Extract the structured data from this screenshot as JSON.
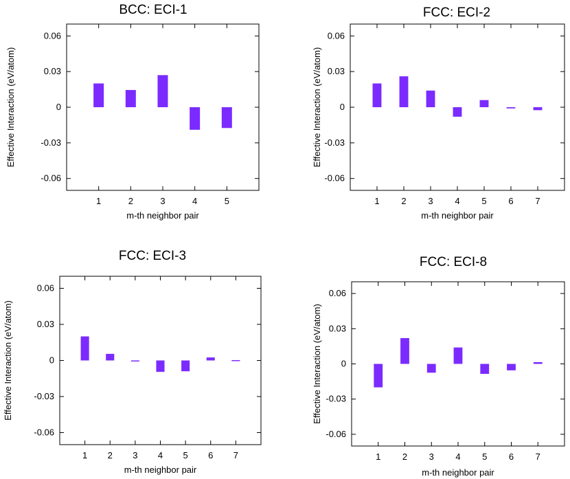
{
  "chart_data": [
    {
      "type": "bar",
      "title": "BCC: ECI-1",
      "xlabel": "m-th neighbor pair",
      "ylabel": "Effective Interaction (eV/atom)",
      "categories": [
        "1",
        "2",
        "3",
        "4",
        "5"
      ],
      "values": [
        0.02,
        0.0145,
        0.027,
        -0.019,
        -0.0175
      ],
      "yticks": [
        "0.06",
        "0.03",
        "0",
        "-0.03",
        "-0.06"
      ],
      "ylim": [
        -0.07,
        0.07
      ],
      "color": "#7b2bff"
    },
    {
      "type": "bar",
      "title": "FCC: ECI-2",
      "xlabel": "m-th neighbor pair",
      "ylabel": "Effective Interaction (eV/atom)",
      "categories": [
        "1",
        "2",
        "3",
        "4",
        "5",
        "6",
        "7"
      ],
      "values": [
        0.02,
        0.026,
        0.014,
        -0.008,
        0.006,
        -0.001,
        -0.0025
      ],
      "yticks": [
        "0.06",
        "0.03",
        "0",
        "-0.03",
        "-0.06"
      ],
      "ylim": [
        -0.07,
        0.07
      ],
      "color": "#7b2bff"
    },
    {
      "type": "bar",
      "title": "FCC: ECI-3",
      "xlabel": "m-th neighbor pair",
      "ylabel": "Effective Interaction (eV/atom)",
      "categories": [
        "1",
        "2",
        "3",
        "4",
        "5",
        "6",
        "7"
      ],
      "values": [
        0.02,
        0.0055,
        -0.0005,
        -0.0095,
        -0.009,
        0.0025,
        0.0003
      ],
      "yticks": [
        "0.06",
        "0.03",
        "0",
        "-0.03",
        "-0.06"
      ],
      "ylim": [
        -0.07,
        0.07
      ],
      "color": "#7b2bff"
    },
    {
      "type": "bar",
      "title": "FCC: ECI-8",
      "xlabel": "m-th neighbor pair",
      "ylabel": "Effective Interaction (eV/atom)",
      "categories": [
        "1",
        "2",
        "3",
        "4",
        "5",
        "6",
        "7"
      ],
      "values": [
        -0.02,
        0.022,
        -0.0075,
        0.014,
        -0.0085,
        -0.0055,
        0.0015
      ],
      "yticks": [
        "0.06",
        "0.03",
        "0",
        "-0.03",
        "-0.06"
      ],
      "ylim": [
        -0.07,
        0.07
      ],
      "color": "#7b2bff"
    }
  ]
}
